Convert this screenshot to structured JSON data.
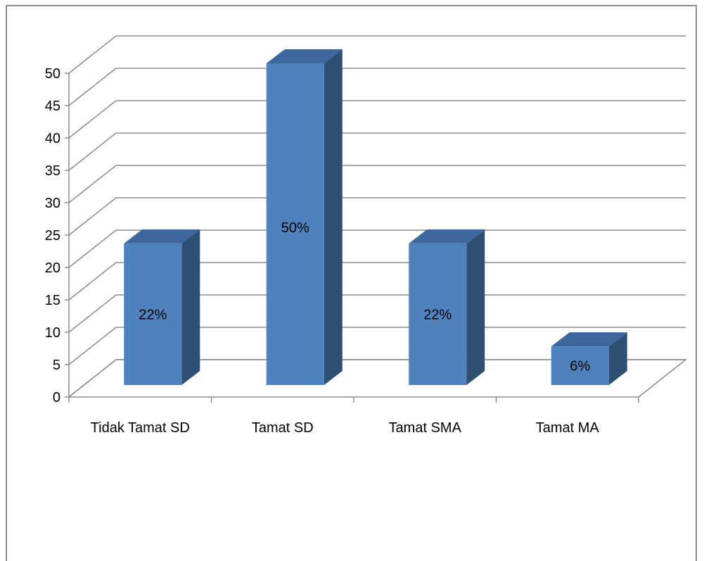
{
  "chart_data": {
    "type": "bar",
    "style": "3d-column",
    "categories": [
      "Tidak Tamat SD",
      "Tamat SD",
      "Tamat SMA",
      "Tamat MA"
    ],
    "values": [
      22,
      50,
      22,
      6
    ],
    "data_labels": [
      "22%",
      "50%",
      "22%",
      "6%"
    ],
    "yticks": [
      "0",
      "5",
      "10",
      "15",
      "20",
      "25",
      "30",
      "35",
      "40",
      "45",
      "50"
    ],
    "ylim": [
      0,
      50
    ],
    "grid": true,
    "legend": "none",
    "colors": {
      "bar_front": "#4f81bd",
      "bar_side": "#2f4f75",
      "bar_top": "#3c689e",
      "grid": "#8c8c8c"
    }
  }
}
